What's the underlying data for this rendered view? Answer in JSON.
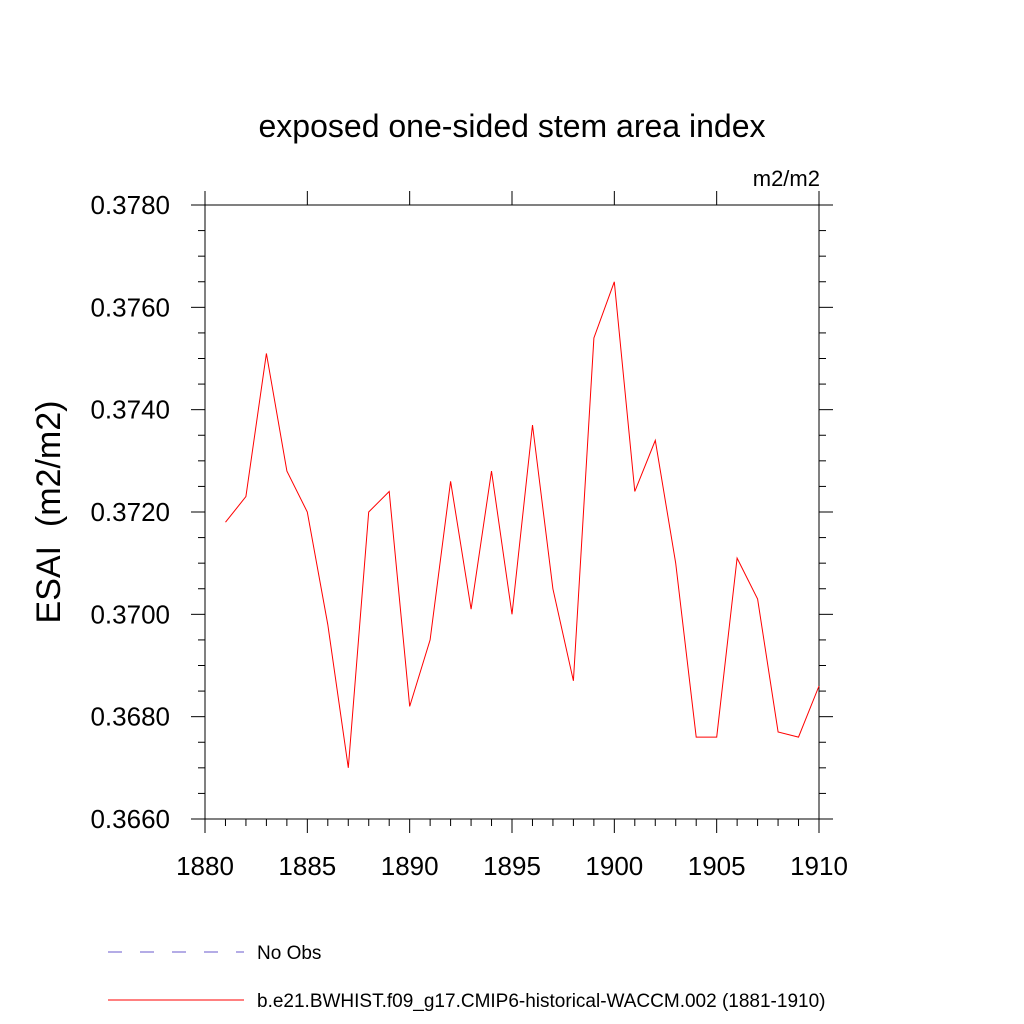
{
  "chart_data": {
    "type": "line",
    "title": "exposed one-sided stem area index",
    "units_label": "m2/m2",
    "ylabel": "ESAI  (m2/m2)",
    "xlabel": "",
    "xlim": [
      1880,
      1910
    ],
    "ylim": [
      0.366,
      0.378
    ],
    "x_ticks": [
      1880,
      1885,
      1890,
      1895,
      1900,
      1905,
      1910
    ],
    "x_tick_labels": [
      "1880",
      "1885",
      "1890",
      "1895",
      "1900",
      "1905",
      "1910"
    ],
    "y_ticks": [
      0.366,
      0.368,
      0.37,
      0.372,
      0.374,
      0.376,
      0.378
    ],
    "y_tick_labels": [
      "0.3660",
      "0.3680",
      "0.3700",
      "0.3720",
      "0.3740",
      "0.3760",
      "0.3780"
    ],
    "grid": false,
    "legend_position": "bottom",
    "series": [
      {
        "name": "b.e21.BWHIST.f09_g17.CMIP6-historical-WACCM.002 (1881-1910)",
        "color": "#ff0000",
        "style": "solid",
        "x": [
          1881,
          1882,
          1883,
          1884,
          1885,
          1886,
          1887,
          1888,
          1889,
          1890,
          1891,
          1892,
          1893,
          1894,
          1895,
          1896,
          1897,
          1898,
          1899,
          1900,
          1901,
          1902,
          1903,
          1904,
          1905,
          1906,
          1907,
          1908,
          1909,
          1910
        ],
        "values": [
          0.3718,
          0.3723,
          0.3751,
          0.3728,
          0.372,
          0.3698,
          0.367,
          0.372,
          0.3724,
          0.3682,
          0.3695,
          0.3726,
          0.3701,
          0.3728,
          0.37,
          0.3737,
          0.3705,
          0.3687,
          0.3754,
          0.3765,
          0.3724,
          0.3734,
          0.371,
          0.3676,
          0.3676,
          0.3711,
          0.3703,
          0.3677,
          0.3676,
          0.3686
        ]
      }
    ],
    "legend": [
      {
        "label": "No Obs",
        "color": "#6a5acd",
        "style": "dashed"
      },
      {
        "label": "b.e21.BWHIST.f09_g17.CMIP6-historical-WACCM.002 (1881-1910)",
        "color": "#ff0000",
        "style": "solid"
      }
    ]
  }
}
